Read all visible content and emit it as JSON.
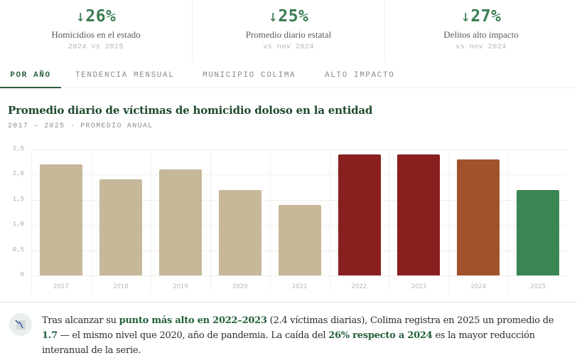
{
  "kpis": [
    {
      "arrow": "↓",
      "value": "26%",
      "label": "Homicidios en el estado",
      "sub": "2024 vs 2025"
    },
    {
      "arrow": "↓",
      "value": "25%",
      "label": "Promedio diario estatal",
      "sub": "vs nov 2024"
    },
    {
      "arrow": "↓",
      "value": "27%",
      "label": "Delitos alto impacto",
      "sub": "vs nov 2024"
    }
  ],
  "tabs": [
    {
      "label": "POR AÑO",
      "active": true
    },
    {
      "label": "TENDENCIA MENSUAL",
      "active": false
    },
    {
      "label": "MUNICIPIO COLIMA",
      "active": false
    },
    {
      "label": "ALTO IMPACTO",
      "active": false
    }
  ],
  "chart": {
    "title": "Promedio diario de víctimas de homicidio doloso en la entidad",
    "subtitle": "2017 – 2025 · PROMEDIO ANUAL"
  },
  "chart_data": {
    "type": "bar",
    "title": "Promedio diario de víctimas de homicidio doloso en la entidad",
    "subtitle": "2017 – 2025 · PROMEDIO ANUAL",
    "xlabel": "",
    "ylabel": "",
    "categories": [
      "2017",
      "2018",
      "2019",
      "2020",
      "2021",
      "2022",
      "2023",
      "2024",
      "2025"
    ],
    "values": [
      2.2,
      1.9,
      2.1,
      1.7,
      1.4,
      2.4,
      2.4,
      2.3,
      1.7
    ],
    "colors": [
      "#c6b898",
      "#c6b898",
      "#c6b898",
      "#c6b898",
      "#c6b898",
      "#8a1f20",
      "#8a1f20",
      "#a0522d",
      "#3a8653"
    ],
    "ylim": [
      0,
      2.5
    ],
    "yticks": [
      "0",
      "0,5",
      "1,0",
      "1,5",
      "2,0",
      "2,5"
    ],
    "grid": true,
    "legend": "none"
  },
  "insight": {
    "icon": "trend-down-chart-icon",
    "parts": [
      {
        "text": "Tras alcanzar su ",
        "bold": false
      },
      {
        "text": "punto más alto en 2022–2023",
        "bold": true
      },
      {
        "text": " (2.4 víctimas diarias), Colima registra en 2025 un promedio de ",
        "bold": false
      },
      {
        "text": "1.7",
        "bold": true
      },
      {
        "text": " — el mismo nivel que 2020, año de pandemia. La caída del ",
        "bold": false
      },
      {
        "text": "26% respecto a 2024",
        "bold": true
      },
      {
        "text": " es la mayor reducción interanual de la serie.",
        "bold": false
      }
    ]
  }
}
